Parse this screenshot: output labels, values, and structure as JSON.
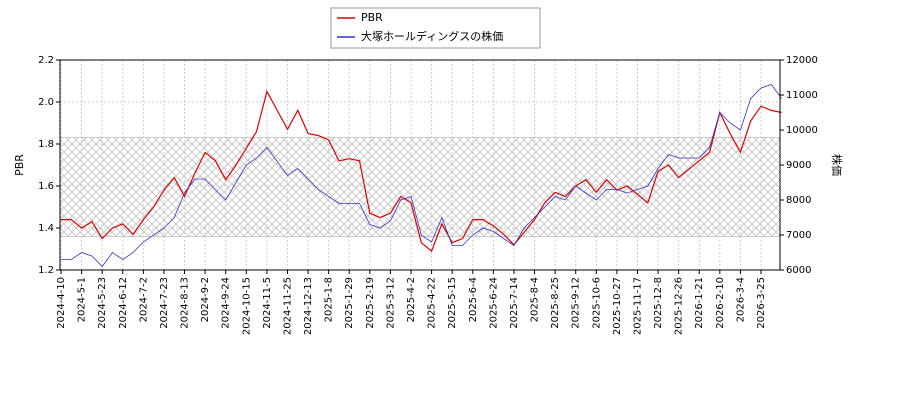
{
  "chart_data": {
    "type": "line",
    "y_label": "PBR",
    "y2_label": "株価",
    "categories": [
      "2024-4-10",
      null,
      "2024-5-1",
      null,
      "2024-5-23",
      null,
      "2024-6-12",
      null,
      "2024-7-2",
      null,
      "2024-7-23",
      null,
      "2024-8-13",
      null,
      "2024-9-2",
      null,
      "2024-9-24",
      null,
      "2024-10-15",
      null,
      "2024-11-5",
      null,
      "2024-11-25",
      null,
      "2024-12-13",
      null,
      "2025-1-8",
      null,
      "2025-1-29",
      null,
      "2025-2-19",
      null,
      "2025-3-12",
      null,
      "2025-4-2",
      null,
      "2025-4-22",
      null,
      "2025-5-15",
      null,
      "2025-6-4",
      null,
      "2025-6-24",
      null,
      "2025-7-14",
      null,
      "2025-8-4",
      null,
      "2025-8-25",
      null,
      "2025-9-12",
      null,
      "2025-10-6",
      null,
      "2025-10-27",
      null,
      "2025-11-17",
      null,
      "2025-12-8",
      null,
      "2025-12-26",
      null,
      "2026-1-21",
      null,
      "2026-2-10",
      null,
      "2026-3-4",
      null,
      "2026-3-25",
      null,
      null
    ],
    "series": [
      {
        "name": "PBR",
        "color": "#dd0000",
        "axis": "y",
        "values": [
          1.44,
          1.44,
          1.4,
          1.43,
          1.35,
          1.4,
          1.42,
          1.37,
          1.44,
          1.5,
          1.58,
          1.64,
          1.55,
          1.66,
          1.76,
          1.72,
          1.63,
          1.7,
          1.78,
          1.86,
          2.05,
          1.96,
          1.87,
          1.96,
          1.85,
          1.84,
          1.82,
          1.72,
          1.73,
          1.72,
          1.47,
          1.45,
          1.47,
          1.55,
          1.52,
          1.33,
          1.29,
          1.42,
          1.33,
          1.35,
          1.44,
          1.44,
          1.41,
          1.37,
          1.32,
          1.38,
          1.44,
          1.52,
          1.57,
          1.55,
          1.6,
          1.63,
          1.57,
          1.63,
          1.58,
          1.6,
          1.56,
          1.52,
          1.67,
          1.7,
          1.64,
          1.68,
          1.72,
          1.76,
          1.95,
          1.85,
          1.76,
          1.91,
          1.98,
          1.96,
          1.95
        ]
      },
      {
        "name": "大塚ホールディングスの株価",
        "color": "#3333cc",
        "axis": "y2",
        "values": [
          6300,
          6300,
          6500,
          6400,
          6100,
          6500,
          6300,
          6500,
          6800,
          7000,
          7200,
          7500,
          8200,
          8600,
          8600,
          8300,
          8000,
          8500,
          9000,
          9200,
          9500,
          9100,
          8700,
          8900,
          8600,
          8300,
          8100,
          7900,
          7900,
          7900,
          7300,
          7200,
          7400,
          8000,
          8100,
          7000,
          6800,
          7500,
          6700,
          6700,
          7000,
          7200,
          7100,
          6900,
          6700,
          7200,
          7500,
          7800,
          8100,
          8000,
          8400,
          8200,
          8000,
          8300,
          8300,
          8200,
          8300,
          8400,
          8900,
          9300,
          9200,
          9200,
          9200,
          9500,
          10500,
          10200,
          10000,
          10900,
          11200,
          11300,
          10900
        ]
      }
    ],
    "ylim": [
      1.2,
      2.2
    ],
    "yticks": [
      1.2,
      1.4,
      1.6,
      1.8,
      {
        "value": 2,
        "label": "2.0"
      },
      2.2
    ],
    "y2lim": [
      6000,
      12000
    ],
    "y2ticks": [
      6000,
      7000,
      8000,
      9000,
      10000,
      11000,
      12000
    ],
    "band": [
      1.36,
      1.83
    ],
    "grid": true,
    "legend": "top"
  }
}
